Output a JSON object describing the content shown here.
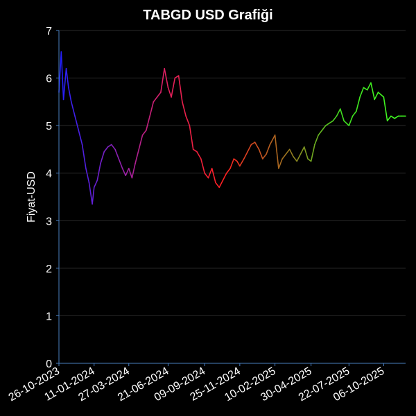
{
  "chart_data": {
    "type": "line",
    "title": "TABGD USD Grafiği",
    "xlabel": "",
    "ylabel": "Fiyat-USD",
    "ylim": [
      0,
      7
    ],
    "y_ticks": [
      "0",
      "1",
      "2",
      "3",
      "4",
      "5",
      "6",
      "7"
    ],
    "x_ticks": [
      "26-10-2023",
      "11-01-2024",
      "27-03-2024",
      "21-06-2024",
      "09-09-2024",
      "25-11-2024",
      "10-02-2025",
      "30-04-2025",
      "22-07-2025",
      "06-10-2025"
    ],
    "grid": "horizontal",
    "colors": {
      "background": "#000000",
      "axis": "#4a7fc1",
      "grid": "#2a2a2a",
      "text": "#ffffff"
    },
    "series": [
      {
        "color_scale": [
          "#2020ff",
          "#8020c0",
          "#e02060",
          "#ff2020",
          "#a07020",
          "#40e020",
          "#40ff20"
        ],
        "x": [
          "26-10-2023",
          "31-10-2023",
          "05-11-2023",
          "11-11-2023",
          "16-11-2023",
          "22-11-2023",
          "30-11-2023",
          "08-12-2023",
          "16-12-2023",
          "24-12-2023",
          "31-12-2023",
          "07-01-2024",
          "11-01-2024",
          "18-01-2024",
          "25-01-2024",
          "02-02-2024",
          "10-02-2024",
          "18-02-2024",
          "26-02-2024",
          "05-03-2024",
          "13-03-2024",
          "20-03-2024",
          "27-03-2024",
          "03-04-2024",
          "10-04-2024",
          "18-04-2024",
          "26-04-2024",
          "04-05-2024",
          "12-05-2024",
          "20-05-2024",
          "28-05-2024",
          "05-06-2024",
          "13-06-2024",
          "21-06-2024",
          "28-06-2024",
          "06-07-2024",
          "14-07-2024",
          "22-07-2024",
          "30-07-2024",
          "07-08-2024",
          "15-08-2024",
          "23-08-2024",
          "01-09-2024",
          "09-09-2024",
          "17-09-2024",
          "25-09-2024",
          "03-10-2024",
          "11-10-2024",
          "19-10-2024",
          "27-10-2024",
          "04-11-2024",
          "12-11-2024",
          "19-11-2024",
          "25-11-2024",
          "04-12-2024",
          "12-12-2024",
          "20-12-2024",
          "28-12-2024",
          "06-01-2025",
          "14-01-2025",
          "22-01-2025",
          "30-01-2025",
          "10-02-2025",
          "18-02-2025",
          "26-02-2025",
          "06-03-2025",
          "14-03-2025",
          "22-03-2025",
          "30-03-2025",
          "07-04-2025",
          "15-04-2025",
          "23-04-2025",
          "30-04-2025",
          "08-05-2025",
          "16-05-2025",
          "24-05-2025",
          "01-06-2025",
          "09-06-2025",
          "17-06-2025",
          "25-06-2025",
          "03-07-2025",
          "11-07-2025",
          "22-07-2025",
          "30-07-2025",
          "07-08-2025",
          "15-08-2025",
          "23-08-2025",
          "31-08-2025",
          "08-09-2025",
          "16-09-2025",
          "24-09-2025",
          "06-10-2025",
          "14-10-2025",
          "22-10-2025",
          "30-10-2025",
          "07-11-2025",
          "15-11-2025",
          "23-11-2025"
        ],
        "values": [
          5.7,
          6.55,
          5.55,
          6.2,
          5.8,
          5.5,
          5.2,
          4.9,
          4.6,
          4.1,
          3.8,
          3.35,
          3.7,
          3.85,
          4.2,
          4.45,
          4.55,
          4.6,
          4.5,
          4.3,
          4.1,
          3.95,
          4.1,
          3.9,
          4.2,
          4.5,
          4.8,
          4.9,
          5.2,
          5.5,
          5.6,
          5.7,
          6.2,
          5.8,
          5.6,
          6.0,
          6.05,
          5.5,
          5.2,
          5.0,
          4.5,
          4.45,
          4.3,
          4.0,
          3.9,
          4.1,
          3.8,
          3.7,
          3.85,
          4.0,
          4.1,
          4.3,
          4.25,
          4.15,
          4.3,
          4.45,
          4.6,
          4.65,
          4.5,
          4.3,
          4.4,
          4.6,
          4.8,
          4.1,
          4.3,
          4.4,
          4.5,
          4.35,
          4.25,
          4.4,
          4.55,
          4.3,
          4.25,
          4.6,
          4.8,
          4.9,
          5.0,
          5.05,
          5.1,
          5.2,
          5.35,
          5.1,
          5.0,
          5.2,
          5.3,
          5.6,
          5.8,
          5.75,
          5.9,
          5.55,
          5.7,
          5.6,
          5.1,
          5.2,
          5.15,
          5.2,
          5.2,
          5.2
        ]
      }
    ]
  }
}
